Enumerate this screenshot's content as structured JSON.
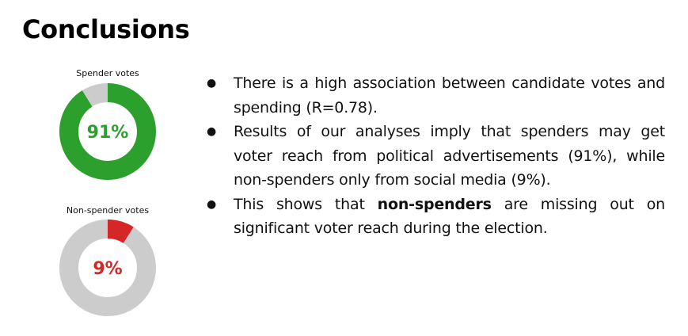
{
  "slide": {
    "title": "Conclusions"
  },
  "donuts": [
    {
      "caption": "Spender votes",
      "percent_label": "91%",
      "value": 0.91,
      "fill_color": "#2ca02c",
      "rest_color": "#cccccc",
      "label_color": "#2ca02c"
    },
    {
      "caption": "Non-spender votes",
      "percent_label": "9%",
      "value": 0.09,
      "fill_color": "#d62728",
      "rest_color": "#cccccc",
      "label_color": "#d62728"
    }
  ],
  "bullets": {
    "marker": "●",
    "item1": "There is a high association between candidate votes and spending (R=0.78).",
    "item2": "Results of our analyses imply that spenders may get voter reach from political advertisements (91%), while non-spenders only from social media (9%).",
    "item3_before": "This shows that ",
    "item3_bold": "non-spenders",
    "item3_after": " are missing out on significant voter reach during the election."
  }
}
